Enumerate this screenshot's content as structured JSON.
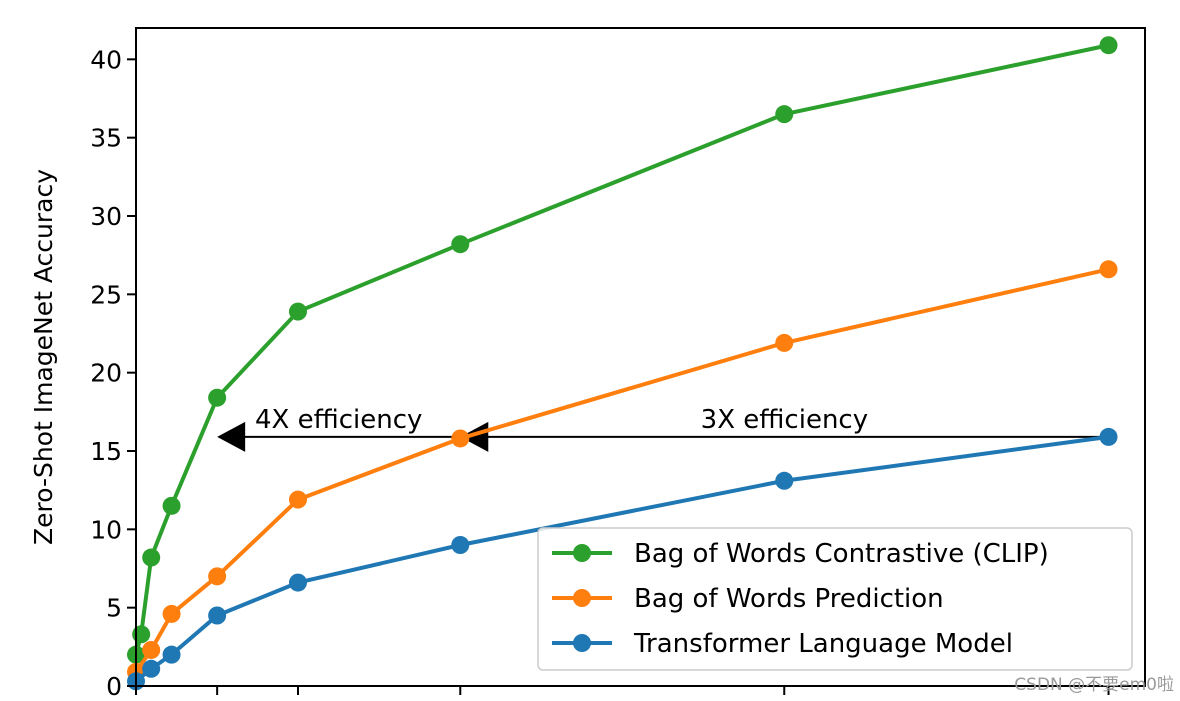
{
  "chart_data": {
    "type": "line",
    "ylabel": "Zero-Shot ImageNet Accuracy",
    "xlabel": "",
    "ylim": [
      0,
      42
    ],
    "yticks": [
      0,
      5,
      10,
      15,
      20,
      25,
      30,
      35,
      40
    ],
    "x_units": "relative compute (unlabeled ticks)",
    "xlim": [
      0,
      33.2
    ],
    "xticks": [
      0,
      2.67,
      5.33,
      10.67,
      21.33,
      32
    ],
    "grid": false,
    "legend_position": "lower-right",
    "series": [
      {
        "name": "Bag of Words Contrastive (CLIP)",
        "color": "#2ca02c",
        "x": [
          0,
          0.17,
          0.5,
          1.17,
          2.67,
          5.33,
          10.67,
          21.33,
          32
        ],
        "y": [
          2.0,
          3.3,
          8.2,
          11.5,
          18.4,
          23.9,
          28.2,
          36.5,
          40.9
        ]
      },
      {
        "name": "Bag of Words Prediction",
        "color": "#ff7f0e",
        "x": [
          0,
          0.5,
          1.17,
          2.67,
          5.33,
          10.67,
          21.33,
          32
        ],
        "y": [
          0.9,
          2.3,
          4.6,
          7.0,
          11.9,
          15.8,
          21.9,
          26.6
        ]
      },
      {
        "name": "Transformer Language Model",
        "color": "#1f77b4",
        "x": [
          0,
          0.5,
          1.17,
          2.67,
          5.33,
          10.67,
          21.33,
          32
        ],
        "y": [
          0.3,
          1.1,
          2.0,
          4.5,
          6.6,
          9.0,
          13.1,
          15.9
        ]
      }
    ],
    "annotations": [
      {
        "text": "4X efficiency",
        "x_from": 10.67,
        "x_to": 2.67,
        "y": 15.9
      },
      {
        "text": "3X efficiency",
        "x_from": 32,
        "x_to": 10.67,
        "y": 15.9
      }
    ]
  },
  "watermark": "CSDN @不要em0啦"
}
